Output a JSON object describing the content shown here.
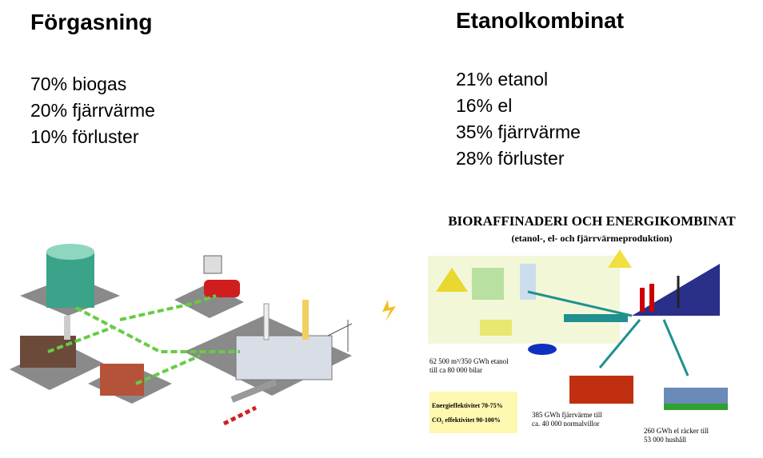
{
  "left": {
    "title": "Förgasning",
    "items": [
      "70% biogas",
      "20% fjärrvärme",
      "10% förluster"
    ]
  },
  "right": {
    "title": "Etanolkombinat",
    "items": [
      "21% etanol",
      "16% el",
      "35% fjärrvärme",
      "28% förluster"
    ]
  },
  "diagram": {
    "title": "BIORAFFINADERI OCH ENERGIKOMBINAT",
    "subtitle": "(etanol-, el- och fjärrvärmeproduktion)",
    "labels": [
      "62 500 m³/350 GWh etanol",
      "till ca 80 000 bilar",
      "Energieffektivitet 70-75%",
      "CO₂ effektivitet 90-100%",
      "385 GWh fjärrvärme till",
      "ca. 40 000 normalvillor",
      "260 GWh el räcker till",
      "53 000 hushåll"
    ]
  }
}
